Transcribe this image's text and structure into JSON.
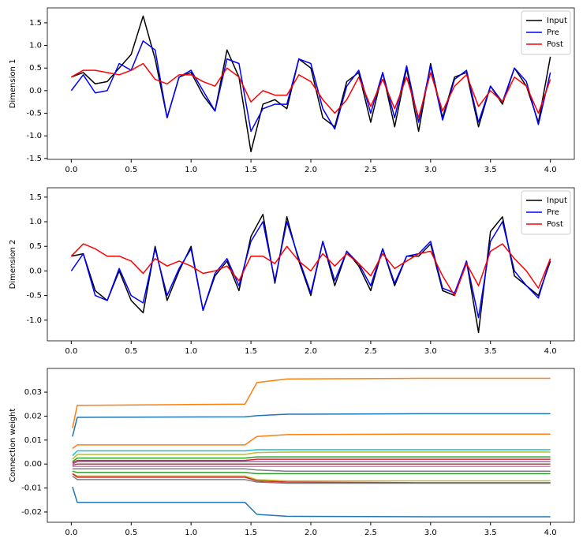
{
  "chart_data": [
    {
      "type": "line",
      "ylabel": "Dimension 1",
      "x": [
        0,
        0.1,
        0.2,
        0.3,
        0.4,
        0.5,
        0.6,
        0.7,
        0.8,
        0.9,
        1,
        1.1,
        1.2,
        1.3,
        1.4,
        1.5,
        1.6,
        1.7,
        1.8,
        1.9,
        2,
        2.1,
        2.2,
        2.3,
        2.4,
        2.5,
        2.6,
        2.7,
        2.8,
        2.9,
        3,
        3.1,
        3.2,
        3.3,
        3.4,
        3.5,
        3.6,
        3.7,
        3.8,
        3.9,
        4
      ],
      "series": [
        {
          "name": "Input",
          "color": "#000000",
          "values": [
            0.3,
            0.4,
            0.15,
            0.2,
            0.5,
            0.8,
            1.65,
            0.7,
            -0.6,
            0.3,
            0.4,
            -0.1,
            -0.45,
            0.9,
            0.3,
            -1.35,
            -0.3,
            -0.2,
            -0.4,
            0.7,
            0.5,
            -0.6,
            -0.8,
            0.2,
            0.4,
            -0.7,
            0.4,
            -0.8,
            0.5,
            -0.9,
            0.6,
            -0.6,
            0.3,
            0.4,
            -0.8,
            0.1,
            -0.3,
            0.5,
            0.1,
            -0.7,
            0.75
          ]
        },
        {
          "name": "Pre",
          "color": "#0000ff",
          "values": [
            0,
            0.35,
            -0.05,
            0,
            0.6,
            0.45,
            1.1,
            0.9,
            -0.6,
            0.3,
            0.45,
            0,
            -0.45,
            0.7,
            0.6,
            -0.9,
            -0.4,
            -0.3,
            -0.3,
            0.7,
            0.6,
            -0.4,
            -0.85,
            0.1,
            0.45,
            -0.5,
            0.4,
            -0.6,
            0.55,
            -0.7,
            0.55,
            -0.65,
            0.25,
            0.45,
            -0.7,
            0.1,
            -0.25,
            0.5,
            0.2,
            -0.75,
            0.4
          ]
        },
        {
          "name": "Post",
          "color": "#ff0000",
          "values": [
            0.3,
            0.45,
            0.45,
            0.4,
            0.35,
            0.45,
            0.6,
            0.25,
            0.15,
            0.35,
            0.35,
            0.2,
            0.1,
            0.5,
            0.3,
            -0.25,
            0,
            -0.1,
            -0.1,
            0.35,
            0.2,
            -0.2,
            -0.5,
            -0.2,
            0.3,
            -0.35,
            0.25,
            -0.4,
            0.3,
            -0.6,
            0.4,
            -0.45,
            0.1,
            0.35,
            -0.35,
            0,
            -0.25,
            0.3,
            0.1,
            -0.5,
            0.25
          ]
        }
      ],
      "xlim": [
        -0.2,
        4.2
      ],
      "ylim": [
        -1.52,
        1.83
      ],
      "xticks": [
        {
          "value": 0,
          "label": "0.0"
        },
        0.5,
        {
          "value": 1,
          "label": "1.0"
        },
        1.5,
        {
          "value": 2,
          "label": "2.0"
        },
        2.5,
        {
          "value": 3,
          "label": "3.0"
        },
        3.5,
        {
          "value": 4,
          "label": "4.0"
        }
      ],
      "yticks": [
        -1.5,
        {
          "value": -1,
          "label": "-1.0"
        },
        -0.5,
        {
          "value": 0,
          "label": "0.0"
        },
        0.5,
        {
          "value": 1,
          "label": "1.0"
        },
        1.5
      ],
      "grid": false,
      "legend": "upper right"
    },
    {
      "type": "line",
      "ylabel": "Dimension 2",
      "x": [
        0,
        0.1,
        0.2,
        0.3,
        0.4,
        0.5,
        0.6,
        0.7,
        0.8,
        0.9,
        1,
        1.1,
        1.2,
        1.3,
        1.4,
        1.5,
        1.6,
        1.7,
        1.8,
        1.9,
        2,
        2.1,
        2.2,
        2.3,
        2.4,
        2.5,
        2.6,
        2.7,
        2.8,
        2.9,
        3,
        3.1,
        3.2,
        3.3,
        3.4,
        3.5,
        3.6,
        3.7,
        3.8,
        3.9,
        4
      ],
      "series": [
        {
          "name": "Input",
          "color": "#000000",
          "values": [
            0.3,
            0.35,
            -0.4,
            -0.6,
            0,
            -0.6,
            -0.85,
            0.5,
            -0.6,
            0,
            0.5,
            -0.8,
            -0.1,
            0.2,
            -0.4,
            0.7,
            1.15,
            -0.25,
            1.1,
            0.2,
            -0.5,
            0.6,
            -0.3,
            0.4,
            0.1,
            -0.4,
            0.45,
            -0.3,
            0.3,
            0.3,
            0.55,
            -0.4,
            -0.5,
            0.2,
            -1.25,
            0.8,
            1.1,
            -0.1,
            -0.3,
            -0.5,
            0.2
          ]
        },
        {
          "name": "Pre",
          "color": "#0000ff",
          "values": [
            0,
            0.35,
            -0.5,
            -0.6,
            0.05,
            -0.5,
            -0.65,
            0.45,
            -0.5,
            0.05,
            0.45,
            -0.8,
            -0.05,
            0.25,
            -0.3,
            0.6,
            1,
            -0.2,
            1,
            0.25,
            -0.45,
            0.6,
            -0.2,
            0.4,
            0.15,
            -0.3,
            0.45,
            -0.25,
            0.3,
            0.35,
            0.6,
            -0.35,
            -0.45,
            0.2,
            -0.95,
            0.6,
            1,
            0,
            -0.3,
            -0.55,
            0.25
          ]
        },
        {
          "name": "Post",
          "color": "#ff0000",
          "values": [
            0.3,
            0.55,
            0.45,
            0.3,
            0.3,
            0.2,
            -0.05,
            0.25,
            0.1,
            0.2,
            0.1,
            -0.05,
            0,
            0.1,
            -0.2,
            0.3,
            0.3,
            0.15,
            0.5,
            0.2,
            0,
            0.35,
            0.1,
            0.35,
            0.15,
            -0.1,
            0.35,
            0.05,
            0.2,
            0.35,
            0.4,
            -0.1,
            -0.5,
            0.15,
            -0.3,
            0.4,
            0.55,
            0.25,
            0,
            -0.35,
            0.25
          ]
        }
      ],
      "xlim": [
        -0.2,
        4.2
      ],
      "ylim": [
        -1.42,
        1.69
      ],
      "xticks": [
        {
          "value": 0,
          "label": "0.0"
        },
        0.5,
        {
          "value": 1,
          "label": "1.0"
        },
        1.5,
        {
          "value": 2,
          "label": "2.0"
        },
        2.5,
        {
          "value": 3,
          "label": "3.0"
        },
        3.5,
        {
          "value": 4,
          "label": "4.0"
        }
      ],
      "yticks": [
        {
          "value": -1,
          "label": "-1.0"
        },
        -0.5,
        {
          "value": 0,
          "label": "0.0"
        },
        0.5,
        {
          "value": 1,
          "label": "1.0"
        },
        1.5
      ],
      "grid": false,
      "legend": "upper right"
    },
    {
      "type": "line",
      "ylabel": "Connection weight",
      "x": [
        0.01,
        0.05,
        1.45,
        1.55,
        1.8,
        2.9,
        4
      ],
      "series": [
        {
          "color": "#ff7f0e",
          "values": [
            0.015,
            0.0245,
            0.025,
            0.034,
            0.0355,
            0.0358,
            0.0358
          ]
        },
        {
          "color": "#1f77b4",
          "values": [
            0.0115,
            0.0195,
            0.0197,
            0.0202,
            0.0208,
            0.021,
            0.021
          ]
        },
        {
          "color": "#ff7f0e",
          "values": [
            0.0065,
            0.008,
            0.008,
            0.0115,
            0.0123,
            0.0125,
            0.0125
          ]
        },
        {
          "color": "#17becf",
          "values": [
            0.0035,
            0.0055,
            0.0055,
            0.006,
            0.006,
            0.006,
            0.006
          ]
        },
        {
          "color": "#bcbd22",
          "values": [
            0.002,
            0.004,
            0.004,
            0.0048,
            0.005,
            0.005,
            0.005
          ]
        },
        {
          "color": "#2ca02c",
          "values": [
            0.001,
            0.0025,
            0.0025,
            0.003,
            0.003,
            0.003,
            0.003
          ]
        },
        {
          "color": "#d62728",
          "values": [
            0.0005,
            0.0015,
            0.0015,
            0.002,
            0.002,
            0.002,
            0.002
          ]
        },
        {
          "color": "#9467bd",
          "values": [
            0,
            0.001,
            0.001,
            0.001,
            0.001,
            0.001,
            0.001
          ]
        },
        {
          "color": "#8c564b",
          "values": [
            -0.0005,
            0,
            0,
            0,
            0,
            0,
            0
          ]
        },
        {
          "color": "#e377c2",
          "values": [
            -0.001,
            -0.001,
            -0.001,
            -0.001,
            -0.001,
            -0.001,
            -0.001
          ]
        },
        {
          "color": "#7f7f7f",
          "values": [
            -0.002,
            -0.002,
            -0.002,
            -0.0025,
            -0.003,
            -0.003,
            -0.003
          ]
        },
        {
          "color": "#2ca02c",
          "values": [
            -0.003,
            -0.0035,
            -0.0035,
            -0.004,
            -0.004,
            -0.004,
            -0.004
          ]
        },
        {
          "color": "#bcbd22",
          "values": [
            -0.004,
            -0.005,
            -0.005,
            -0.0065,
            -0.007,
            -0.007,
            -0.007
          ]
        },
        {
          "color": "#d62728",
          "values": [
            -0.004,
            -0.0055,
            -0.0055,
            -0.007,
            -0.0075,
            -0.0078,
            -0.0078
          ]
        },
        {
          "color": "#7f7f7f",
          "values": [
            -0.005,
            -0.0065,
            -0.0065,
            -0.0075,
            -0.008,
            -0.008,
            -0.008
          ]
        },
        {
          "color": "#1f77b4",
          "values": [
            -0.0095,
            -0.016,
            -0.016,
            -0.021,
            -0.0218,
            -0.022,
            -0.022
          ]
        }
      ],
      "xlim": [
        -0.2,
        4.2
      ],
      "ylim": [
        -0.0243,
        0.0399
      ],
      "xticks": [
        {
          "value": 0,
          "label": "0.0"
        },
        0.5,
        {
          "value": 1,
          "label": "1.0"
        },
        1.5,
        {
          "value": 2,
          "label": "2.0"
        },
        2.5,
        {
          "value": 3,
          "label": "3.0"
        },
        3.5,
        {
          "value": 4,
          "label": "4.0"
        }
      ],
      "yticks": [
        -0.02,
        -0.01,
        {
          "value": 0,
          "label": "0.00"
        },
        0.01,
        0.02,
        0.03
      ],
      "grid": false
    }
  ]
}
